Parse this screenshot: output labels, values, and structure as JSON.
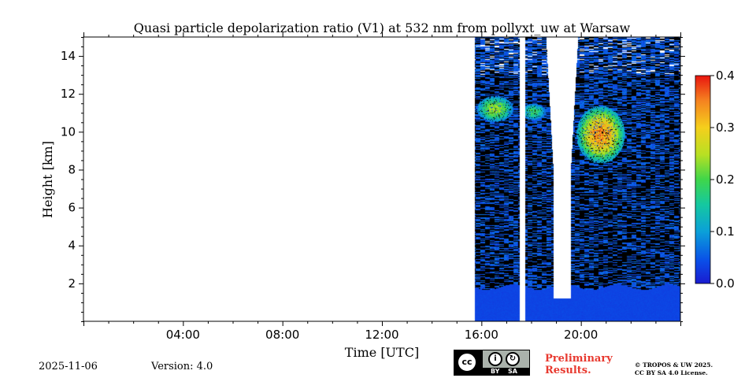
{
  "chart_data": {
    "type": "heatmap",
    "title": "Quasi particle depolarization ratio (V1) at 532 nm from pollyxt_uw at Warsaw",
    "xlabel": "Time [UTC]",
    "ylabel": "Height [km]",
    "xlim_hours": [
      0,
      24
    ],
    "ylim_km": [
      0,
      15
    ],
    "x_ticks": [
      {
        "hour": 4,
        "label": "04:00"
      },
      {
        "hour": 8,
        "label": "08:00"
      },
      {
        "hour": 12,
        "label": "12:00"
      },
      {
        "hour": 16,
        "label": "16:00"
      },
      {
        "hour": 20,
        "label": "20:00"
      }
    ],
    "y_ticks": [
      {
        "value": 2,
        "label": "2"
      },
      {
        "value": 4,
        "label": "4"
      },
      {
        "value": 6,
        "label": "6"
      },
      {
        "value": 8,
        "label": "8"
      },
      {
        "value": 10,
        "label": "10"
      },
      {
        "value": 12,
        "label": "12"
      },
      {
        "value": 14,
        "label": "14"
      }
    ],
    "colorbar": {
      "min": 0.0,
      "max": 0.4,
      "ticks": [
        {
          "value": 0.0,
          "label": "0.0"
        },
        {
          "value": 0.1,
          "label": "0.1"
        },
        {
          "value": 0.2,
          "label": "0.2"
        },
        {
          "value": 0.3,
          "label": "0.3"
        },
        {
          "value": 0.4,
          "label": "0.4"
        }
      ],
      "colormap": "jet"
    },
    "data_coverage_hours": [
      [
        15.75,
        17.55
      ],
      [
        17.75,
        24
      ]
    ],
    "boundary_layer_top_km": 1.8,
    "boundary_layer_ratio": 0.03,
    "background_ratio": 0.02,
    "no_signal_column": {
      "start_hour": 18.9,
      "end_hour": 19.6,
      "min_height_km": 1.2
    },
    "features": [
      {
        "name": "cirrus-layer-1",
        "time_hours": [
          15.8,
          17.3
        ],
        "height_km": [
          10.5,
          11.9
        ],
        "peak_ratio": 0.28
      },
      {
        "name": "cirrus-layer-2",
        "time_hours": [
          17.6,
          18.6
        ],
        "height_km": [
          10.6,
          11.5
        ],
        "peak_ratio": 0.22
      },
      {
        "name": "cirrus-layer-3",
        "time_hours": [
          19.8,
          21.8
        ],
        "height_km": [
          8.3,
          11.4
        ],
        "peak_ratio": 0.4
      }
    ]
  },
  "colors": {
    "no_signal": "#000000",
    "background": "#ffffff"
  },
  "footer": {
    "date": "2025-11-06",
    "version": "Version: 4.0",
    "preliminary_line1": "Preliminary",
    "preliminary_line2": "Results.",
    "copyright_line1": "© TROPOS & UW 2025.",
    "copyright_line2": "CC BY SA 4.0 License.",
    "license_cc": "cc",
    "license_by": "BY",
    "license_sa": "SA"
  }
}
